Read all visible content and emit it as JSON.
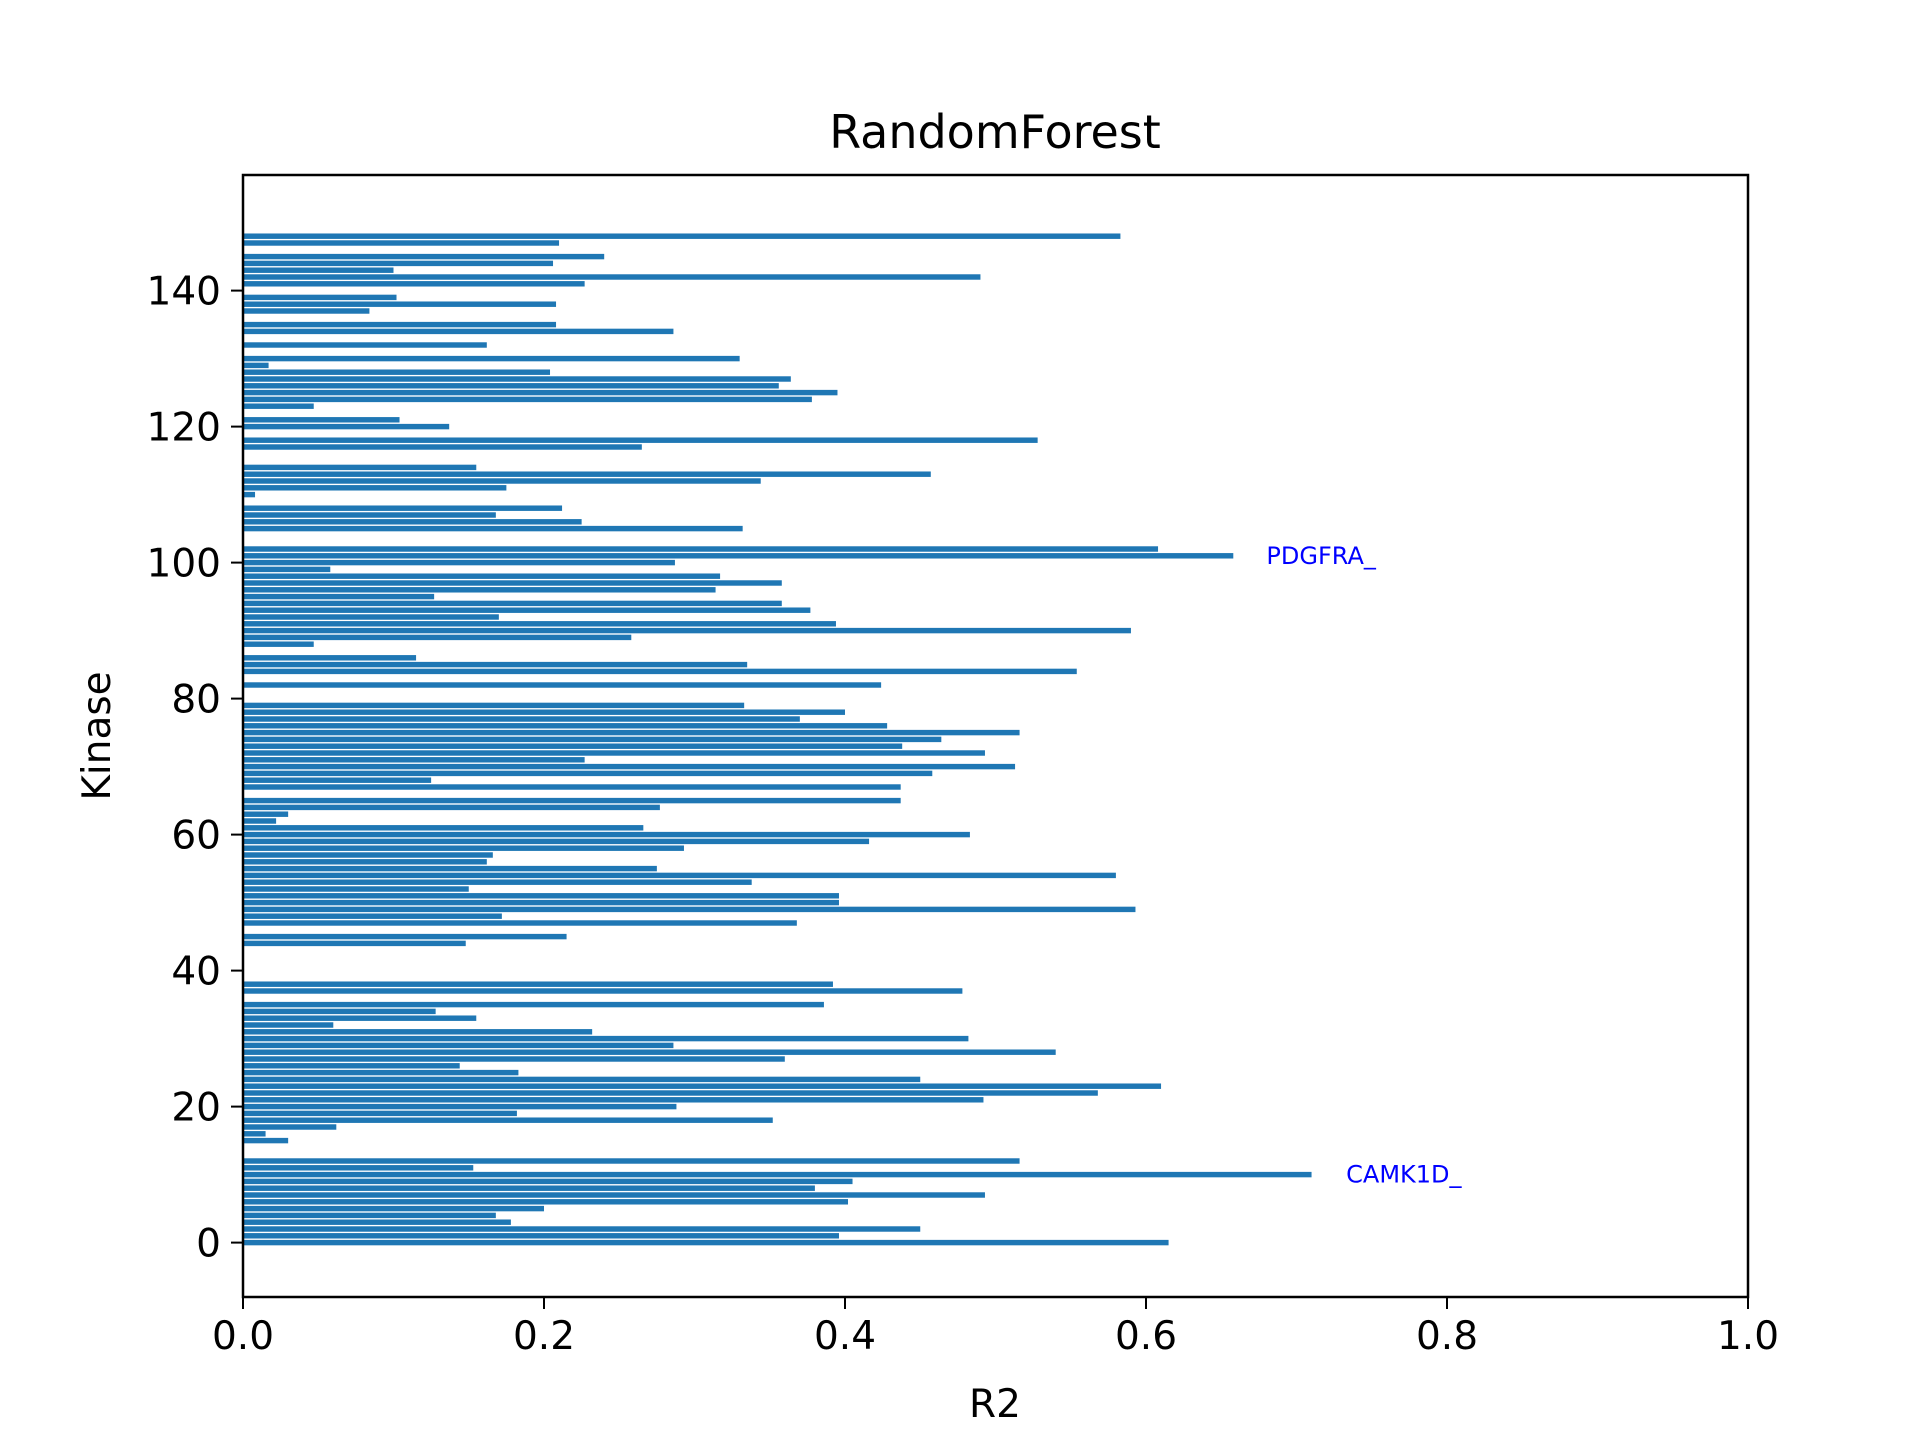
{
  "chart_data": {
    "type": "bar",
    "orientation": "horizontal",
    "title": "RandomForest",
    "xlabel": "R2",
    "ylabel": "Kinase",
    "xlim": [
      0.0,
      1.0
    ],
    "ylim": [
      -8,
      157
    ],
    "xticks": [
      "0.0",
      "0.2",
      "0.4",
      "0.6",
      "0.8",
      "1.0"
    ],
    "yticks": [
      "0",
      "20",
      "40",
      "60",
      "80",
      "100",
      "120",
      "140"
    ],
    "bar_color": "#1f77b4",
    "grid": false,
    "bars": [
      {
        "y": 0,
        "x": 0.615
      },
      {
        "y": 1,
        "x": 0.396
      },
      {
        "y": 2,
        "x": 0.45
      },
      {
        "y": 3,
        "x": 0.178
      },
      {
        "y": 4,
        "x": 0.168
      },
      {
        "y": 5,
        "x": 0.2
      },
      {
        "y": 6,
        "x": 0.402
      },
      {
        "y": 7,
        "x": 0.493
      },
      {
        "y": 8,
        "x": 0.38
      },
      {
        "y": 9,
        "x": 0.405
      },
      {
        "y": 10,
        "x": 0.71
      },
      {
        "y": 11,
        "x": 0.153
      },
      {
        "y": 12,
        "x": 0.516
      },
      {
        "y": 15,
        "x": 0.03
      },
      {
        "y": 16,
        "x": 0.015
      },
      {
        "y": 17,
        "x": 0.062
      },
      {
        "y": 18,
        "x": 0.352
      },
      {
        "y": 19,
        "x": 0.182
      },
      {
        "y": 20,
        "x": 0.288
      },
      {
        "y": 21,
        "x": 0.492
      },
      {
        "y": 22,
        "x": 0.568
      },
      {
        "y": 23,
        "x": 0.61
      },
      {
        "y": 24,
        "x": 0.45
      },
      {
        "y": 25,
        "x": 0.183
      },
      {
        "y": 26,
        "x": 0.144
      },
      {
        "y": 27,
        "x": 0.36
      },
      {
        "y": 28,
        "x": 0.54
      },
      {
        "y": 29,
        "x": 0.286
      },
      {
        "y": 30,
        "x": 0.482
      },
      {
        "y": 31,
        "x": 0.232
      },
      {
        "y": 32,
        "x": 0.06
      },
      {
        "y": 33,
        "x": 0.155
      },
      {
        "y": 34,
        "x": 0.128
      },
      {
        "y": 35,
        "x": 0.386
      },
      {
        "y": 37,
        "x": 0.478
      },
      {
        "y": 38,
        "x": 0.392
      },
      {
        "y": 44,
        "x": 0.148
      },
      {
        "y": 45,
        "x": 0.215
      },
      {
        "y": 47,
        "x": 0.368
      },
      {
        "y": 48,
        "x": 0.172
      },
      {
        "y": 49,
        "x": 0.593
      },
      {
        "y": 50,
        "x": 0.396
      },
      {
        "y": 51,
        "x": 0.396
      },
      {
        "y": 52,
        "x": 0.15
      },
      {
        "y": 53,
        "x": 0.338
      },
      {
        "y": 54,
        "x": 0.58
      },
      {
        "y": 55,
        "x": 0.275
      },
      {
        "y": 56,
        "x": 0.162
      },
      {
        "y": 57,
        "x": 0.166
      },
      {
        "y": 58,
        "x": 0.293
      },
      {
        "y": 59,
        "x": 0.416
      },
      {
        "y": 60,
        "x": 0.483
      },
      {
        "y": 61,
        "x": 0.266
      },
      {
        "y": 62,
        "x": 0.022
      },
      {
        "y": 63,
        "x": 0.03
      },
      {
        "y": 64,
        "x": 0.277
      },
      {
        "y": 65,
        "x": 0.437
      },
      {
        "y": 67,
        "x": 0.437
      },
      {
        "y": 68,
        "x": 0.125
      },
      {
        "y": 69,
        "x": 0.458
      },
      {
        "y": 70,
        "x": 0.513
      },
      {
        "y": 71,
        "x": 0.227
      },
      {
        "y": 72,
        "x": 0.493
      },
      {
        "y": 73,
        "x": 0.438
      },
      {
        "y": 74,
        "x": 0.464
      },
      {
        "y": 75,
        "x": 0.516
      },
      {
        "y": 76,
        "x": 0.428
      },
      {
        "y": 77,
        "x": 0.37
      },
      {
        "y": 78,
        "x": 0.4
      },
      {
        "y": 79,
        "x": 0.333
      },
      {
        "y": 82,
        "x": 0.424
      },
      {
        "y": 84,
        "x": 0.554
      },
      {
        "y": 85,
        "x": 0.335
      },
      {
        "y": 86,
        "x": 0.115
      },
      {
        "y": 88,
        "x": 0.047
      },
      {
        "y": 89,
        "x": 0.258
      },
      {
        "y": 90,
        "x": 0.59
      },
      {
        "y": 91,
        "x": 0.394
      },
      {
        "y": 92,
        "x": 0.17
      },
      {
        "y": 93,
        "x": 0.377
      },
      {
        "y": 94,
        "x": 0.358
      },
      {
        "y": 95,
        "x": 0.127
      },
      {
        "y": 96,
        "x": 0.314
      },
      {
        "y": 97,
        "x": 0.358
      },
      {
        "y": 98,
        "x": 0.317
      },
      {
        "y": 99,
        "x": 0.058
      },
      {
        "y": 100,
        "x": 0.287
      },
      {
        "y": 101,
        "x": 0.658
      },
      {
        "y": 102,
        "x": 0.608
      },
      {
        "y": 105,
        "x": 0.332
      },
      {
        "y": 106,
        "x": 0.225
      },
      {
        "y": 107,
        "x": 0.168
      },
      {
        "y": 108,
        "x": 0.212
      },
      {
        "y": 110,
        "x": 0.008
      },
      {
        "y": 111,
        "x": 0.175
      },
      {
        "y": 112,
        "x": 0.344
      },
      {
        "y": 113,
        "x": 0.457
      },
      {
        "y": 114,
        "x": 0.155
      },
      {
        "y": 117,
        "x": 0.265
      },
      {
        "y": 118,
        "x": 0.528
      },
      {
        "y": 120,
        "x": 0.137
      },
      {
        "y": 121,
        "x": 0.104
      },
      {
        "y": 123,
        "x": 0.047
      },
      {
        "y": 124,
        "x": 0.378
      },
      {
        "y": 125,
        "x": 0.395
      },
      {
        "y": 126,
        "x": 0.356
      },
      {
        "y": 127,
        "x": 0.364
      },
      {
        "y": 128,
        "x": 0.204
      },
      {
        "y": 129,
        "x": 0.017
      },
      {
        "y": 130,
        "x": 0.33
      },
      {
        "y": 132,
        "x": 0.162
      },
      {
        "y": 134,
        "x": 0.286
      },
      {
        "y": 135,
        "x": 0.208
      },
      {
        "y": 137,
        "x": 0.084
      },
      {
        "y": 138,
        "x": 0.208
      },
      {
        "y": 139,
        "x": 0.102
      },
      {
        "y": 141,
        "x": 0.227
      },
      {
        "y": 142,
        "x": 0.49
      },
      {
        "y": 143,
        "x": 0.1
      },
      {
        "y": 144,
        "x": 0.206
      },
      {
        "y": 145,
        "x": 0.24
      },
      {
        "y": 147,
        "x": 0.21
      },
      {
        "y": 148,
        "x": 0.583
      }
    ],
    "annotations": [
      {
        "text": "PDGFRA_",
        "x": 0.68,
        "y": 101,
        "color": "#0000ff"
      },
      {
        "text": "CAMK1D_",
        "x": 0.733,
        "y": 10,
        "color": "#0000ff"
      }
    ]
  }
}
